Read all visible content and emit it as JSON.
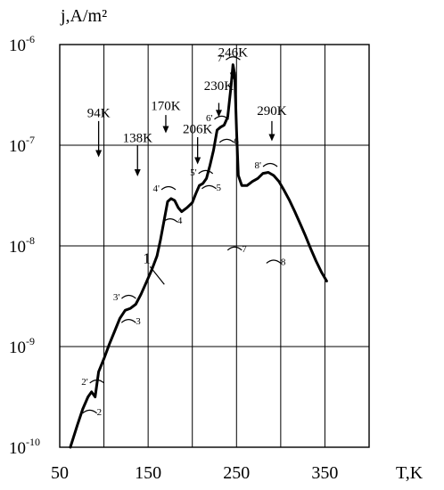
{
  "chart_data": {
    "type": "line",
    "ylabel": "j,A/m²",
    "xlabel": "T,K",
    "xlim": [
      50,
      400
    ],
    "ylim_log10": [
      -10,
      -6
    ],
    "y_scale": "log",
    "grid": true,
    "x_ticks": [
      {
        "value": 50,
        "label": "50"
      },
      {
        "value": 150,
        "label": "150"
      },
      {
        "value": 250,
        "label": "250"
      },
      {
        "value": 350,
        "label": "350"
      }
    ],
    "x_grid": [
      50,
      100,
      150,
      200,
      250,
      300,
      350,
      400
    ],
    "y_ticks": [
      {
        "exp": -6,
        "label": "10",
        "sup": "-6"
      },
      {
        "exp": -7,
        "label": "10",
        "sup": "-7"
      },
      {
        "exp": -8,
        "label": "10",
        "sup": "-8"
      },
      {
        "exp": -9,
        "label": "10",
        "sup": "-9"
      },
      {
        "exp": -10,
        "label": "10",
        "sup": "-10"
      }
    ],
    "series": [
      {
        "name": "1",
        "points": [
          [
            62,
            -10.0
          ],
          [
            70,
            -9.78
          ],
          [
            76,
            -9.62
          ],
          [
            82,
            -9.5
          ],
          [
            86,
            -9.45
          ],
          [
            90,
            -9.5
          ],
          [
            94,
            -9.25
          ],
          [
            100,
            -9.12
          ],
          [
            106,
            -8.98
          ],
          [
            112,
            -8.85
          ],
          [
            118,
            -8.72
          ],
          [
            124,
            -8.64
          ],
          [
            130,
            -8.62
          ],
          [
            136,
            -8.58
          ],
          [
            142,
            -8.48
          ],
          [
            148,
            -8.36
          ],
          [
            154,
            -8.24
          ],
          [
            160,
            -8.1
          ],
          [
            164,
            -7.94
          ],
          [
            168,
            -7.75
          ],
          [
            172,
            -7.56
          ],
          [
            176,
            -7.53
          ],
          [
            180,
            -7.55
          ],
          [
            184,
            -7.62
          ],
          [
            188,
            -7.66
          ],
          [
            194,
            -7.62
          ],
          [
            200,
            -7.57
          ],
          [
            204,
            -7.48
          ],
          [
            208,
            -7.4
          ],
          [
            212,
            -7.38
          ],
          [
            216,
            -7.33
          ],
          [
            220,
            -7.2
          ],
          [
            224,
            -7.05
          ],
          [
            228,
            -6.85
          ],
          [
            232,
            -6.82
          ],
          [
            236,
            -6.8
          ],
          [
            240,
            -6.72
          ],
          [
            244,
            -6.4
          ],
          [
            246,
            -6.2
          ],
          [
            248,
            -6.3
          ],
          [
            250,
            -6.85
          ],
          [
            252,
            -7.3
          ],
          [
            256,
            -7.4
          ],
          [
            262,
            -7.4
          ],
          [
            268,
            -7.36
          ],
          [
            274,
            -7.33
          ],
          [
            280,
            -7.28
          ],
          [
            286,
            -7.27
          ],
          [
            292,
            -7.3
          ],
          [
            298,
            -7.36
          ],
          [
            304,
            -7.45
          ],
          [
            310,
            -7.55
          ],
          [
            316,
            -7.66
          ],
          [
            322,
            -7.78
          ],
          [
            328,
            -7.9
          ],
          [
            334,
            -8.03
          ],
          [
            340,
            -8.15
          ],
          [
            346,
            -8.26
          ],
          [
            352,
            -8.35
          ]
        ]
      }
    ],
    "annotations": [
      {
        "text": "94K",
        "x": 94,
        "y_log": -6.72
      },
      {
        "text": "138K",
        "x": 138,
        "y_log": -6.97
      },
      {
        "text": "170K",
        "x": 170,
        "y_log": -6.65
      },
      {
        "text": "206K",
        "x": 206,
        "y_log": -6.88
      },
      {
        "text": "230K",
        "x": 230,
        "y_log": -6.45
      },
      {
        "text": "246K",
        "x": 246,
        "y_log": -6.12
      },
      {
        "text": "290K",
        "x": 290,
        "y_log": -6.7
      }
    ],
    "arrows": [
      {
        "x": 94,
        "y_top_log": -6.76,
        "y_bottom_log": -7.12
      },
      {
        "x": 138,
        "y_top_log": -7.0,
        "y_bottom_log": -7.31
      },
      {
        "x": 170,
        "y_top_log": -6.7,
        "y_bottom_log": -6.88
      },
      {
        "x": 206,
        "y_top_log": -6.92,
        "y_bottom_log": -7.19
      },
      {
        "x": 230,
        "y_top_log": -6.58,
        "y_bottom_log": -6.72
      },
      {
        "x": 246,
        "y_top_log": -6.22,
        "y_bottom_log": -6.35
      },
      {
        "x": 290,
        "y_top_log": -6.76,
        "y_bottom_log": -6.96
      }
    ],
    "peak_labels": [
      {
        "text": "2'",
        "x": 82,
        "y_log": -9.38
      },
      {
        "text": "2",
        "x": 92,
        "y_log": -9.68
      },
      {
        "text": "3'",
        "x": 118,
        "y_log": -8.54
      },
      {
        "text": "3",
        "x": 136,
        "y_log": -8.78
      },
      {
        "text": "4'",
        "x": 163,
        "y_log": -7.46
      },
      {
        "text": "4",
        "x": 183,
        "y_log": -7.78
      },
      {
        "text": "5'",
        "x": 205,
        "y_log": -7.3
      },
      {
        "text": "5",
        "x": 227,
        "y_log": -7.45
      },
      {
        "text": "6'",
        "x": 223,
        "y_log": -6.76
      },
      {
        "text": "6",
        "x": 247,
        "y_log": -6.99
      },
      {
        "text": "7'",
        "x": 236,
        "y_log": -6.17
      },
      {
        "text": "7",
        "x": 256,
        "y_log": -8.06
      },
      {
        "text": "8'",
        "x": 278,
        "y_log": -7.23
      },
      {
        "text": "8",
        "x": 300,
        "y_log": -8.19
      }
    ],
    "curve_label": {
      "text": "1",
      "x": 130,
      "y_log": -8.1
    }
  }
}
